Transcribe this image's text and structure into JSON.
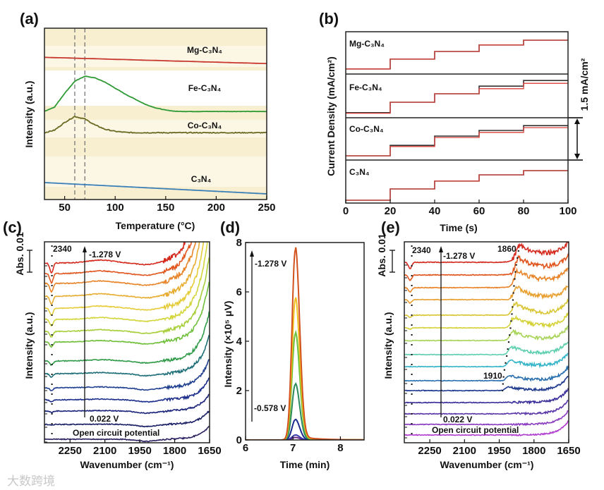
{
  "chart_data": [
    {
      "id": "a",
      "panel_label": "(a)",
      "type": "line",
      "xlabel": "Temperature (°C)",
      "ylabel": "Intensity (a.u.)",
      "xlim": [
        30,
        250
      ],
      "ylim": [
        0,
        10
      ],
      "xticks": [
        50,
        100,
        150,
        200,
        250
      ],
      "reference_lines_x": [
        60,
        70
      ],
      "x": [
        30,
        40,
        50,
        60,
        70,
        80,
        90,
        100,
        110,
        120,
        130,
        140,
        150,
        160,
        170,
        180,
        190,
        200,
        210,
        220,
        230,
        240,
        250
      ],
      "series": [
        {
          "name": "Mg-C₃N₄",
          "color": "#c8382e",
          "values": [
            8.3,
            8.28,
            8.27,
            8.25,
            8.23,
            8.22,
            8.2,
            8.18,
            8.17,
            8.15,
            8.13,
            8.12,
            8.1,
            8.08,
            8.07,
            8.05,
            8.03,
            8.02,
            8.0,
            7.98,
            7.97,
            7.95,
            7.94
          ]
        },
        {
          "name": "Fe-C₃N₄",
          "color": "#2f9a35",
          "values": [
            5.15,
            5.4,
            6.2,
            6.9,
            7.2,
            7.1,
            6.85,
            6.5,
            6.15,
            5.85,
            5.55,
            5.35,
            5.22,
            5.15,
            5.14,
            5.14,
            5.14,
            5.14,
            5.14,
            5.14,
            5.14,
            5.14,
            5.14
          ]
        },
        {
          "name": "Co-C₃N₄",
          "color": "#6b6a24",
          "values": [
            3.9,
            4.05,
            4.5,
            4.85,
            4.7,
            4.35,
            4.1,
            3.98,
            3.92,
            3.9,
            3.9,
            3.9,
            3.9,
            3.9,
            3.9,
            3.9,
            3.9,
            3.9,
            3.9,
            3.9,
            3.9,
            3.9,
            3.9
          ]
        },
        {
          "name": "C₃N₄",
          "color": "#3b7fb8",
          "values": [
            0.99,
            0.96,
            0.93,
            0.9,
            0.87,
            0.84,
            0.81,
            0.78,
            0.75,
            0.72,
            0.69,
            0.66,
            0.63,
            0.6,
            0.57,
            0.54,
            0.51,
            0.48,
            0.45,
            0.42,
            0.39,
            0.36,
            0.33
          ]
        }
      ]
    },
    {
      "id": "b",
      "panel_label": "(b)",
      "type": "line",
      "xlabel": "Time (s)",
      "ylabel": "Current Density (mA/cm²)",
      "xlim": [
        0,
        100
      ],
      "xticks": [
        0,
        20,
        40,
        60,
        80,
        100
      ],
      "scale_bar_label": "1.5 mA/cm²",
      "scale_bar_value": 1.5,
      "step_times": [
        0,
        20,
        40,
        60,
        80
      ],
      "panels": [
        {
          "name": "Mg-C₃N₄",
          "black": [
            0.18,
            0.53,
            0.8,
            1.03,
            1.2
          ],
          "red": [
            0.18,
            0.53,
            0.8,
            1.03,
            1.2
          ]
        },
        {
          "name": "Fe-C₃N₄",
          "black": [
            0.18,
            0.55,
            0.85,
            1.12,
            1.32
          ],
          "red": [
            0.16,
            0.55,
            0.85,
            1.03,
            1.22
          ]
        },
        {
          "name": "Co-C₃N₄",
          "black": [
            0.15,
            0.52,
            0.85,
            1.05,
            1.22
          ],
          "red": [
            0.15,
            0.48,
            0.8,
            0.98,
            1.15
          ]
        },
        {
          "name": "C₃N₄",
          "black": [
            0.1,
            0.5,
            0.78,
            1.0,
            1.15
          ],
          "red": [
            0.1,
            0.5,
            0.78,
            1.0,
            1.15
          ]
        }
      ],
      "colors": {
        "black": "#333333",
        "red": "#d9413a"
      }
    },
    {
      "id": "c",
      "panel_label": "(c)",
      "type": "line",
      "xlabel": "Wavenumber (cm⁻¹)",
      "ylabel": "Intensity (a.u.)",
      "scale_label": "Abs. 0.01",
      "xlim": [
        2360,
        1650
      ],
      "xticks": [
        2250,
        2100,
        1950,
        1800,
        1650
      ],
      "series_count": 15,
      "marker_line": {
        "value": 2340,
        "label": "2340"
      },
      "annotations": {
        "top": "-1.278 V",
        "bottom": "0.022 V",
        "ocp": "Open circuit potential"
      }
    },
    {
      "id": "d",
      "panel_label": "(d)",
      "type": "line",
      "xlabel": "Time (min)",
      "ylabel": "Intensity (×10⁵ μV)",
      "xlim": [
        6,
        8.5
      ],
      "ylim": [
        0,
        8
      ],
      "xticks": [
        6,
        7,
        8
      ],
      "yticks": [
        0,
        2,
        4,
        6,
        8
      ],
      "peak_time": 7.05,
      "series": [
        {
          "color": "#d2521e",
          "peak": 7.7
        },
        {
          "color": "#f0c020",
          "peak": 5.7
        },
        {
          "color": "#6cbf3a",
          "peak": 4.3
        },
        {
          "color": "#2a8a5a",
          "peak": 2.25
        },
        {
          "color": "#1c2b8c",
          "peak": 0.82
        },
        {
          "color": "#3a3aaa",
          "peak": 0.2
        },
        {
          "color": "#6a2a8a",
          "peak": 0.1
        }
      ],
      "annotations": {
        "top": "-1.278 V",
        "bottom": "-0.578 V"
      }
    },
    {
      "id": "e",
      "panel_label": "(e)",
      "type": "line",
      "xlabel": "Wavenumber (cm⁻¹)",
      "ylabel": "Intensity (a.u.)",
      "scale_label": "Abs. 0.01",
      "xlim": [
        2360,
        1650
      ],
      "xticks": [
        2250,
        2100,
        1950,
        1800,
        1650
      ],
      "series_count": 15,
      "marker_line": {
        "value": 2340,
        "label": "2340"
      },
      "peak_labels": [
        "1860",
        "1910"
      ],
      "annotations": {
        "top": "-1.278 V",
        "bottom": "0.022 V",
        "ocp": "Open circuit potential"
      }
    }
  ],
  "watermark": "大数跨境"
}
